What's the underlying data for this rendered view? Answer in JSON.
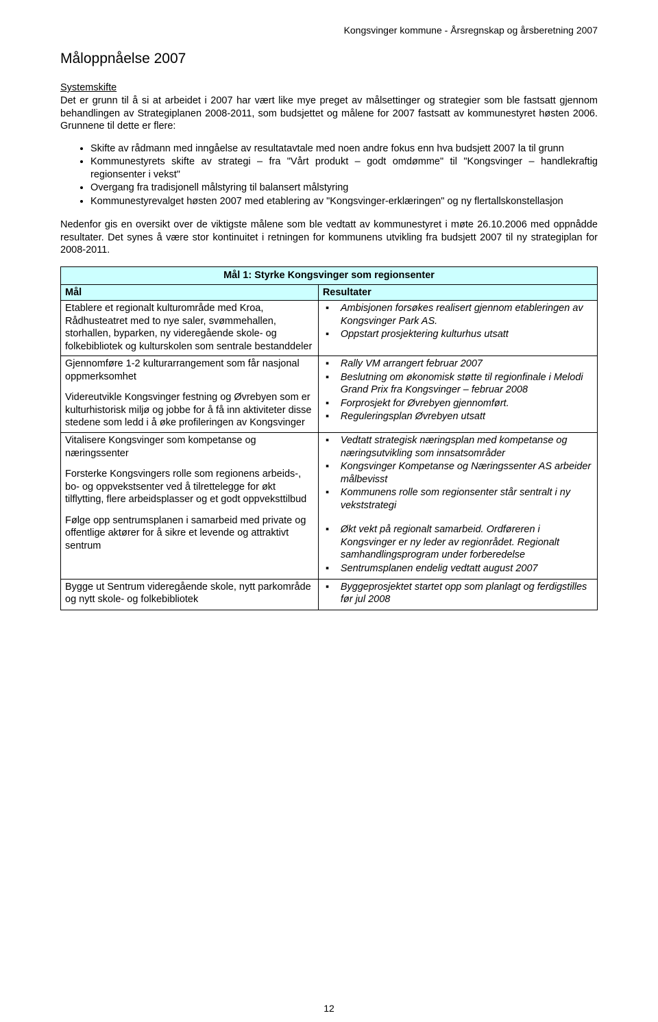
{
  "header": {
    "right": "Kongsvinger  kommune - Årsregnskap og årsberetning 2007"
  },
  "title": "Måloppnåelse 2007",
  "section1": {
    "heading": "Systemskifte",
    "p1": "Det er grunn til å si at arbeidet i 2007 har vært like mye preget av målsettinger og strategier som ble fastsatt gjennom behandlingen av Strategiplanen 2008-2011, som budsjettet og målene for 2007 fastsatt av kommunestyret høsten 2006. Grunnene til dette er flere:",
    "bullets": [
      "Skifte av rådmann med inngåelse av resultatavtale med noen andre fokus enn hva budsjett 2007 la til grunn",
      "Kommunestyrets skifte av strategi – fra \"Vårt produkt – godt omdømme\" til \"Kongsvinger – handlekraftig regionsenter i vekst\"",
      "Overgang fra tradisjonell målstyring til balansert målstyring",
      "Kommunestyrevalget høsten 2007 med etablering av \"Kongsvinger-erklæringen\" og ny flertallskonstellasjon"
    ],
    "p2": "Nedenfor gis en oversikt over de viktigste målene som ble vedtatt av kommunestyret i møte 26.10.2006 med oppnådde resultater. Det synes å være stor kontinuitet i retningen for kommunens utvikling fra budsjett 2007 til ny strategiplan for 2008-2011."
  },
  "table": {
    "title": "Mål 1: Styrke Kongsvinger som regionsenter",
    "col1": "Mål",
    "col2": "Resultater",
    "rows": [
      {
        "left": [
          "Etablere et regionalt kulturområde med Kroa, Rådhusteatret med to nye saler, svømmehallen, storhallen, byparken, ny videregående skole- og folkebibliotek og kulturskolen som sentrale bestanddeler"
        ],
        "right": [
          "Ambisjonen forsøkes realisert gjennom etableringen av Kongsvinger Park AS.",
          "Oppstart prosjektering kulturhus utsatt"
        ]
      },
      {
        "left": [
          "Gjennomføre 1-2 kulturarrangement som får nasjonal oppmerksomhet",
          "Videreutvikle Kongsvinger festning og Øvrebyen som er kulturhistorisk miljø og jobbe for å få inn aktiviteter disse stedene som ledd i å øke profileringen av Kongsvinger"
        ],
        "right": [
          "Rally VM arrangert februar 2007",
          "Beslutning om økonomisk støtte til regionfinale i Melodi Grand Prix fra Kongsvinger – februar 2008",
          "Forprosjekt for Øvrebyen gjennomført.",
          "Reguleringsplan Øvrebyen utsatt"
        ]
      },
      {
        "left": [
          "Vitalisere Kongsvinger som kompetanse og næringssenter",
          "Forsterke Kongsvingers rolle som regionens arbeids-, bo- og oppvekstsenter ved å tilrettelegge for økt tilflytting, flere arbeidsplasser og et godt oppveksttilbud",
          "Følge opp sentrumsplanen i samarbeid med private og offentlige aktører for å sikre et levende og attraktivt sentrum"
        ],
        "right": [
          "Vedtatt strategisk næringsplan med kompetanse og næringsutvikling som innsatsområder",
          "Kongsvinger Kompetanse og Næringssenter AS arbeider målbevisst",
          "Kommunens rolle som regionsenter står sentralt i ny vekststrategi",
          "|SPACER|",
          "Økt vekt på regionalt samarbeid. Ordføreren i Kongsvinger er ny leder av regionrådet. Regionalt samhandlingsprogram under forberedelse",
          "Sentrumsplanen endelig vedtatt august 2007"
        ]
      },
      {
        "left": [
          "Bygge ut Sentrum videregående skole, nytt parkområde og nytt skole- og folkebibliotek"
        ],
        "right": [
          "Byggeprosjektet startet opp som planlagt og ferdigstilles før jul 2008"
        ]
      }
    ]
  },
  "pageNumber": "12",
  "colors": {
    "tableHeaderBg": "#ccffff",
    "border": "#000000",
    "text": "#000000",
    "background": "#ffffff"
  }
}
